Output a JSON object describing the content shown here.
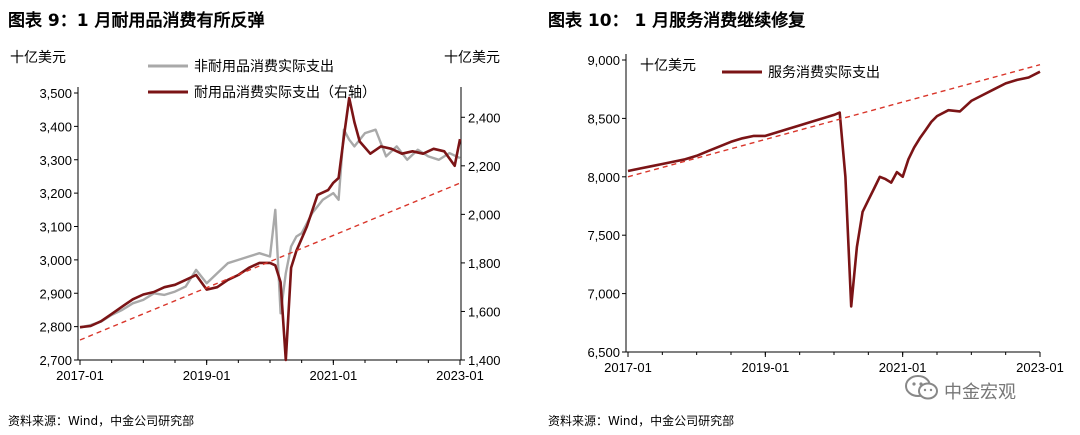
{
  "left": {
    "title": "图表 9：1 月耐用品消费有所反弹",
    "source": "资料来源：Wind，中金公司研究部"
  },
  "right": {
    "title": "图表 10：  1 月服务消费继续修复",
    "source": "资料来源：Wind，中金公司研究部"
  },
  "watermark": {
    "text": "中金宏观",
    "logo": "wechat-logo"
  },
  "colors": {
    "nondurable": "#a9a9a9",
    "durable": "#7b1416",
    "trend": "#d9362b"
  },
  "chart_data": [
    {
      "type": "line",
      "title": "",
      "ylabel": "十亿美元",
      "y2label": "十亿美元",
      "x_range": [
        "2017-01",
        "2023-01"
      ],
      "x_ticks": [
        "2017-01",
        "2019-01",
        "2021-01",
        "2023-01"
      ],
      "ylim": [
        2700,
        3500
      ],
      "y_ticks": [
        2700,
        2800,
        2900,
        3000,
        3100,
        3200,
        3300,
        3400,
        3500
      ],
      "y2lim": [
        1400,
        2500
      ],
      "y2_ticks": [
        1400,
        1600,
        1800,
        2000,
        2200,
        2400
      ],
      "legend_position": "top-center",
      "series": [
        {
          "name": "非耐用品消费实际支出",
          "axis": "left",
          "color": "#a9a9a9",
          "x": [
            "2017-01",
            "2017-03",
            "2017-05",
            "2017-07",
            "2017-09",
            "2017-11",
            "2018-01",
            "2018-03",
            "2018-05",
            "2018-07",
            "2018-09",
            "2018-11",
            "2019-01",
            "2019-03",
            "2019-05",
            "2019-07",
            "2019-09",
            "2019-11",
            "2020-01",
            "2020-02",
            "2020-03",
            "2020-04",
            "2020-05",
            "2020-06",
            "2020-07",
            "2020-09",
            "2020-11",
            "2021-01",
            "2021-02",
            "2021-03",
            "2021-04",
            "2021-05",
            "2021-07",
            "2021-09",
            "2021-11",
            "2022-01",
            "2022-03",
            "2022-05",
            "2022-07",
            "2022-09",
            "2022-11",
            "2023-01"
          ],
          "values": [
            2797,
            2805,
            2815,
            2835,
            2850,
            2870,
            2880,
            2900,
            2895,
            2905,
            2920,
            2970,
            2930,
            2960,
            2990,
            3000,
            3010,
            3020,
            3010,
            3150,
            2840,
            2960,
            3040,
            3070,
            3080,
            3140,
            3180,
            3200,
            3180,
            3390,
            3360,
            3340,
            3380,
            3390,
            3310,
            3340,
            3300,
            3330,
            3310,
            3300,
            3320,
            3305
          ]
        },
        {
          "name": "耐用品消费实际支出（右轴）",
          "axis": "right",
          "color": "#7b1416",
          "x": [
            "2017-01",
            "2017-03",
            "2017-05",
            "2017-07",
            "2017-09",
            "2017-11",
            "2018-01",
            "2018-03",
            "2018-05",
            "2018-07",
            "2018-09",
            "2018-11",
            "2019-01",
            "2019-03",
            "2019-05",
            "2019-07",
            "2019-09",
            "2019-11",
            "2020-01",
            "2020-02",
            "2020-03",
            "2020-04",
            "2020-05",
            "2020-06",
            "2020-07",
            "2020-08",
            "2020-10",
            "2020-12",
            "2021-01",
            "2021-02",
            "2021-03",
            "2021-04",
            "2021-05",
            "2021-06",
            "2021-08",
            "2021-10",
            "2021-12",
            "2022-02",
            "2022-04",
            "2022-06",
            "2022-08",
            "2022-10",
            "2022-12",
            "2023-01"
          ],
          "values": [
            1535,
            1540,
            1560,
            1590,
            1620,
            1650,
            1670,
            1680,
            1700,
            1710,
            1730,
            1750,
            1690,
            1700,
            1730,
            1750,
            1780,
            1800,
            1800,
            1790,
            1720,
            1400,
            1780,
            1850,
            1900,
            1950,
            2080,
            2100,
            2130,
            2150,
            2320,
            2480,
            2380,
            2300,
            2250,
            2280,
            2270,
            2250,
            2260,
            2250,
            2270,
            2260,
            2200,
            2310
          ]
        },
        {
          "name": "",
          "style": "trend",
          "axis": "left",
          "color": "#d9362b",
          "x": [
            "2017-01",
            "2023-01"
          ],
          "values": [
            2760,
            3230
          ]
        }
      ]
    },
    {
      "type": "line",
      "title": "",
      "ylabel": "十亿美元",
      "x_range": [
        "2017-01",
        "2023-01"
      ],
      "x_ticks": [
        "2017-01",
        "2019-01",
        "2021-01",
        "2023-01"
      ],
      "ylim": [
        6500,
        9000
      ],
      "y_ticks": [
        6500,
        7000,
        7500,
        8000,
        8500,
        9000
      ],
      "legend_position": "top-center",
      "series": [
        {
          "name": "服务消费实际支出",
          "color": "#7b1416",
          "x": [
            "2017-01",
            "2017-03",
            "2017-05",
            "2017-07",
            "2017-09",
            "2017-11",
            "2018-01",
            "2018-03",
            "2018-05",
            "2018-07",
            "2018-09",
            "2018-11",
            "2019-01",
            "2019-03",
            "2019-05",
            "2019-07",
            "2019-09",
            "2019-11",
            "2020-01",
            "2020-02",
            "2020-03",
            "2020-04",
            "2020-05",
            "2020-06",
            "2020-07",
            "2020-08",
            "2020-09",
            "2020-10",
            "2020-11",
            "2020-12",
            "2021-01",
            "2021-02",
            "2021-03",
            "2021-04",
            "2021-05",
            "2021-06",
            "2021-07",
            "2021-09",
            "2021-11",
            "2022-01",
            "2022-03",
            "2022-05",
            "2022-07",
            "2022-09",
            "2022-11",
            "2023-01"
          ],
          "values": [
            8050,
            8070,
            8090,
            8110,
            8130,
            8150,
            8180,
            8220,
            8260,
            8300,
            8330,
            8350,
            8350,
            8380,
            8410,
            8440,
            8470,
            8500,
            8530,
            8550,
            8000,
            6890,
            7400,
            7700,
            7800,
            7900,
            8000,
            7980,
            7950,
            8040,
            8000,
            8150,
            8250,
            8330,
            8400,
            8470,
            8520,
            8570,
            8560,
            8650,
            8700,
            8750,
            8800,
            8830,
            8850,
            8900
          ]
        },
        {
          "name": "",
          "style": "trend",
          "color": "#d9362b",
          "x": [
            "2017-01",
            "2023-01"
          ],
          "values": [
            8000,
            8960
          ]
        }
      ]
    }
  ]
}
